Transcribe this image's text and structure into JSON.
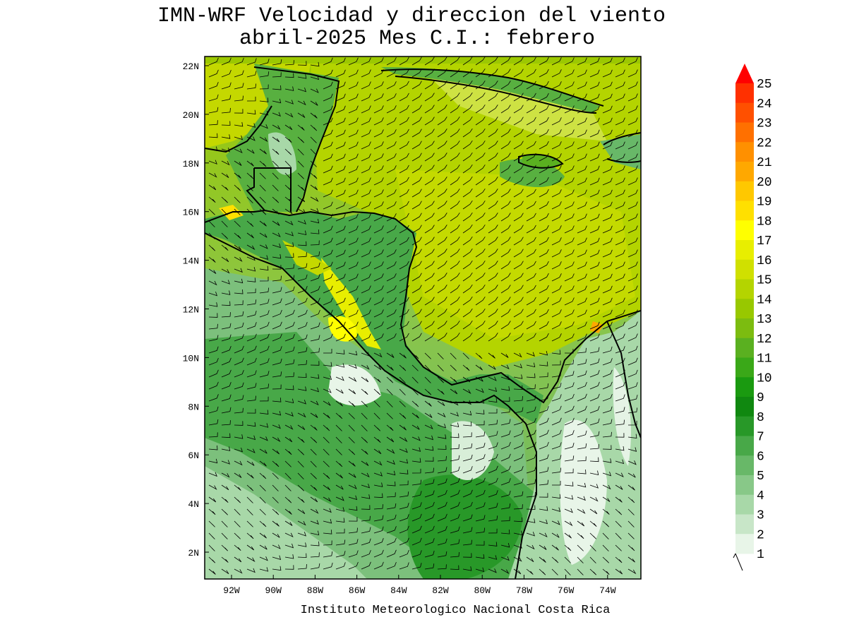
{
  "title": [
    "IMN-WRF Velocidad y direccion del viento",
    "abril-2025 Mes C.I.: febrero"
  ],
  "map": {
    "lat_labels": [
      "22N",
      "20N",
      "18N",
      "16N",
      "14N",
      "12N",
      "10N",
      "8N",
      "6N",
      "4N",
      "2N"
    ],
    "lon_labels": [
      "92W",
      "90W",
      "88W",
      "86W",
      "84W",
      "82W",
      "80W",
      "78W",
      "76W",
      "74W"
    ]
  },
  "colorbar": {
    "levels": [
      "25",
      "24",
      "23",
      "22",
      "21",
      "20",
      "19",
      "18",
      "17",
      "16",
      "15",
      "14",
      "13",
      "12",
      "11",
      "10",
      "9",
      "8",
      "7",
      "6",
      "5",
      "4",
      "3",
      "2",
      "1"
    ],
    "colors": [
      "#ff3000",
      "#ff5000",
      "#ff7000",
      "#ff9000",
      "#ffa800",
      "#ffc800",
      "#ffe000",
      "#ffff00",
      "#e8ee00",
      "#d0e000",
      "#b4d400",
      "#98c800",
      "#7cbc10",
      "#5ab020",
      "#3aa818",
      "#1a9a10",
      "#108810",
      "#289828",
      "#48a848",
      "#68b868",
      "#88c888",
      "#a8d8a8",
      "#c8e6c8",
      "#e8f5e8"
    ],
    "arrow_color": "#ff0000"
  },
  "credit": "Instituto Meteorologico Nacional Costa Rica"
}
